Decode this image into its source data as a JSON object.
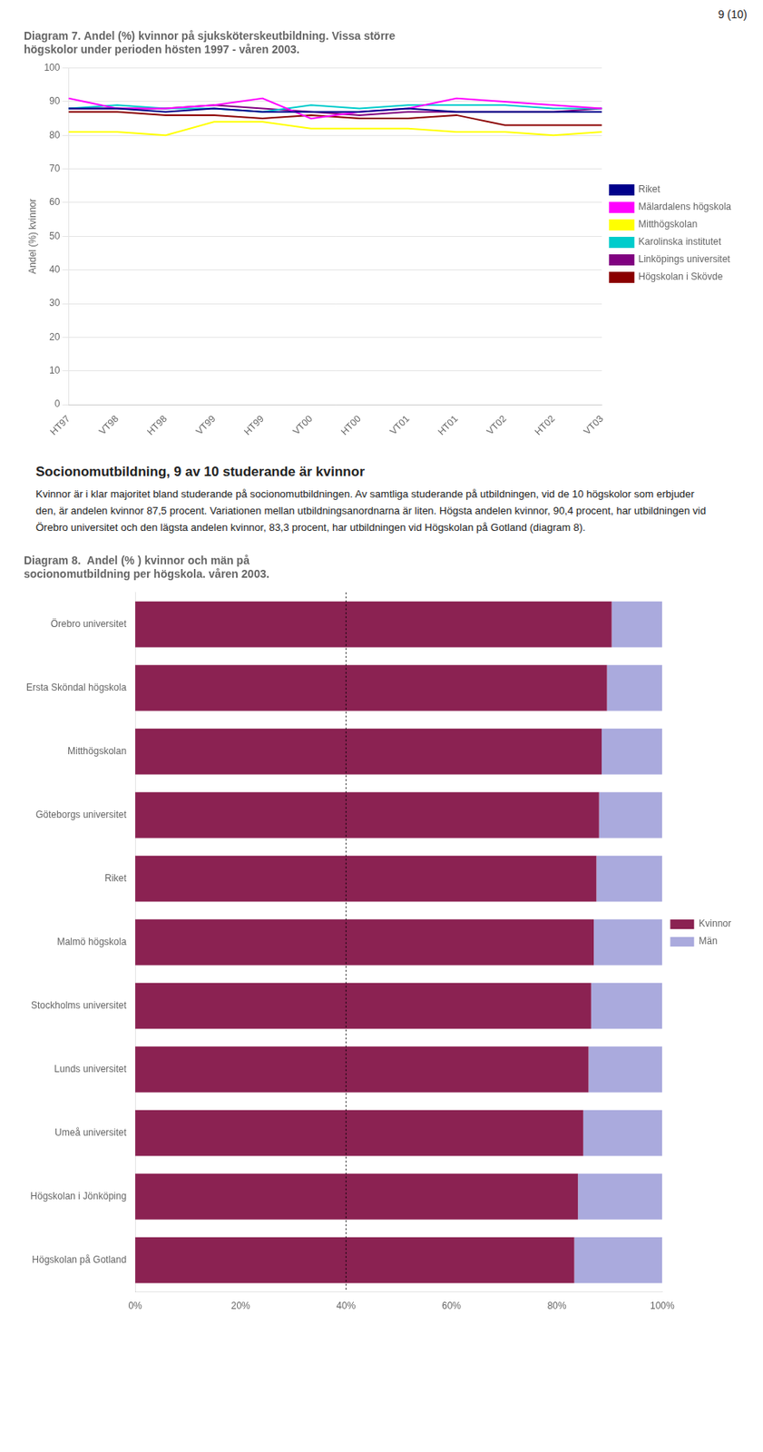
{
  "page_number": "9 (10)",
  "section_title": "Socionomutbildning, 9 av 10 studerande är kvinnor",
  "section_text": "Kvinnor är i klar majoritet bland studerande på socionomutbildningen. Av samtliga studerande på utbildningen, vid de 10 högskolor som erbjuder den, är andelen kvinnor 87,5 procent. Variationen mellan utbildningsanordnarna är liten. Högsta andelen kvinnor, 90,4 procent, har utbildningen vid Örebro universitet och den lägsta andelen kvinnor, 83,3 procent, har utbildningen vid Högskolan på Gotland (diagram 8).",
  "chart_data": [
    {
      "type": "line",
      "title": [
        "Diagram 7. Andel (%) kvinnor på sjuksköterskeutbildning. Vissa större",
        "högskolor under perioden hösten 1997 - våren 2003."
      ],
      "y_label": "Andel (%) kvinnor",
      "categories": [
        "HT97",
        "VT98",
        "HT98",
        "VT99",
        "HT99",
        "VT00",
        "HT00",
        "VT01",
        "HT01",
        "VT02",
        "HT02",
        "VT03"
      ],
      "series": [
        {
          "name": "Riket",
          "color": "#00008B",
          "values": [
            88,
            88,
            87,
            88,
            87,
            87,
            87,
            88,
            87,
            87,
            87,
            87
          ]
        },
        {
          "name": "Mälardalens högskola",
          "color": "#FF00FF",
          "values": [
            91,
            88,
            88,
            89,
            91,
            85,
            87,
            88,
            91,
            90,
            89,
            88
          ]
        },
        {
          "name": "Mitthögskolan",
          "color": "#FFFF00",
          "values": [
            81,
            81,
            80,
            84,
            84,
            82,
            82,
            82,
            81,
            81,
            80,
            81
          ]
        },
        {
          "name": "Karolinska institutet",
          "color": "#00CCCC",
          "values": [
            88,
            89,
            88,
            88,
            87,
            89,
            88,
            89,
            89,
            89,
            88,
            88
          ]
        },
        {
          "name": "Linköpings universitet",
          "color": "#800080",
          "values": [
            88,
            88,
            88,
            89,
            88,
            87,
            86,
            87,
            87,
            87,
            87,
            88
          ]
        },
        {
          "name": "Högskolan i Skövde",
          "color": "#8B0000",
          "values": [
            87,
            87,
            86,
            86,
            85,
            86,
            85,
            85,
            86,
            83,
            83,
            83
          ]
        }
      ],
      "ylim": [
        0,
        100
      ],
      "yticks": [
        0,
        10,
        20,
        30,
        40,
        50,
        60,
        70,
        80,
        90,
        100
      ],
      "grid": true,
      "legend": "right"
    },
    {
      "type": "bar",
      "orientation": "horizontal",
      "stacked": true,
      "title": [
        "Diagram 8.  Andel (% ) kvinnor och män på",
        "socionomutbildning per högskola. våren 2003."
      ],
      "categories": [
        "Örebro universitet",
        "Ersta Sköndal högskola",
        "Mitthögskolan",
        "Göteborgs universitet",
        "Riket",
        "Malmö högskola",
        "Stockholms universitet",
        "Lunds universitet",
        "Umeå universitet",
        "Högskolan i Jönköping",
        "Högskolan på Gotland"
      ],
      "series": [
        {
          "name": "Kvinnor",
          "color": "#8B2252",
          "values": [
            90.4,
            89.5,
            88.5,
            88.0,
            87.5,
            87.0,
            86.5,
            86.0,
            85.0,
            84.0,
            83.3
          ]
        },
        {
          "name": "Män",
          "color": "#AAAADD",
          "values": [
            9.6,
            10.5,
            11.5,
            12.0,
            12.5,
            13.0,
            13.5,
            14.0,
            15.0,
            16.0,
            16.7
          ]
        }
      ],
      "xlim": [
        0,
        100
      ],
      "xticks": [
        {
          "value": 0,
          "label": "0%"
        },
        {
          "value": 20,
          "label": "20%"
        },
        {
          "value": 40,
          "label": "40%"
        },
        {
          "value": 60,
          "label": "60%"
        },
        {
          "value": 80,
          "label": "80%"
        },
        {
          "value": 100,
          "label": "100%"
        }
      ],
      "annotations": [
        {
          "type": "vline",
          "x": 40,
          "line_style": "dotted"
        }
      ],
      "grid": false,
      "legend": "right"
    }
  ]
}
